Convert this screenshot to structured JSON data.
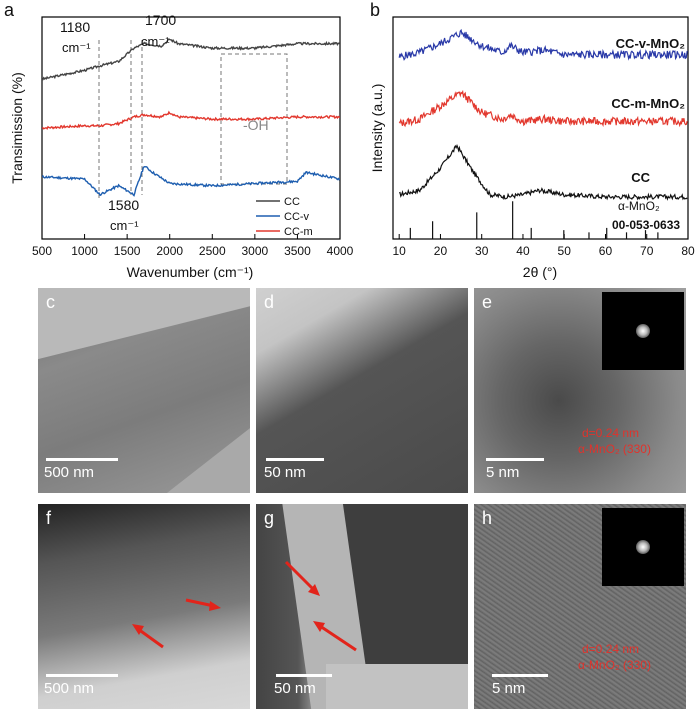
{
  "panel_a": {
    "label": "a",
    "ylabel": "Transimission (%)",
    "xlabel": "Wavenumber (cm⁻¹)",
    "xticks": [
      "500",
      "1000",
      "1500",
      "2000",
      "2500",
      "3000",
      "3500",
      "4000"
    ],
    "ann_1180": "1180",
    "ann_1700": "1700",
    "ann_1580": "1580",
    "ann_unit": "cm⁻¹",
    "ann_oh": "-OH",
    "legend": [
      {
        "name": "CC",
        "color": "#444444"
      },
      {
        "name": "CC-v",
        "color": "#1f5fb0"
      },
      {
        "name": "CC-m",
        "color": "#e2382e"
      }
    ]
  },
  "panel_b": {
    "label": "b",
    "ylabel": "Intensity (a.u.)",
    "xlabel": "2θ (°)",
    "xticks": [
      "10",
      "20",
      "30",
      "40",
      "50",
      "60",
      "70",
      "80"
    ],
    "series_labels": [
      "CC-v-MnO₂",
      "CC-m-MnO₂",
      "CC"
    ],
    "ref_name": "α-MnO₂",
    "ref_card": "00-053-0633"
  },
  "chart_data": [
    {
      "type": "line",
      "xlabel": "Wavenumber (cm⁻¹)",
      "ylabel": "Transimission (%)",
      "xlim": [
        500,
        4000
      ],
      "series": [
        {
          "name": "CC",
          "x": [
            500,
            1000,
            1180,
            1400,
            1580,
            1700,
            1900,
            2000,
            2100,
            2500,
            3000,
            3500,
            4000
          ],
          "y": [
            0.72,
            0.76,
            0.78,
            0.8,
            0.86,
            0.88,
            0.87,
            0.9,
            0.88,
            0.86,
            0.86,
            0.88,
            0.88
          ]
        },
        {
          "name": "CC-m",
          "x": [
            500,
            1000,
            1180,
            1400,
            1580,
            1700,
            1900,
            2000,
            2100,
            2500,
            3000,
            3500,
            4000
          ],
          "y": [
            0.5,
            0.51,
            0.51,
            0.52,
            0.55,
            0.56,
            0.55,
            0.57,
            0.55,
            0.54,
            0.54,
            0.55,
            0.55
          ]
        },
        {
          "name": "CC-v",
          "x": [
            500,
            1000,
            1180,
            1400,
            1580,
            1700,
            1800,
            2000,
            2500,
            3000,
            3500,
            3600,
            4000
          ],
          "y": [
            0.28,
            0.27,
            0.2,
            0.24,
            0.2,
            0.33,
            0.3,
            0.25,
            0.24,
            0.25,
            0.26,
            0.3,
            0.27
          ]
        }
      ]
    },
    {
      "type": "line",
      "xlabel": "2θ (°)",
      "ylabel": "Intensity (a.u.)",
      "xlim": [
        10,
        80
      ],
      "series": [
        {
          "name": "CC-v-MnO₂",
          "x": [
            10,
            15,
            20,
            25,
            30,
            35,
            37,
            40,
            45,
            50,
            60,
            70,
            80
          ],
          "y": [
            0.82,
            0.84,
            0.88,
            0.93,
            0.87,
            0.84,
            0.87,
            0.84,
            0.85,
            0.83,
            0.83,
            0.83,
            0.83
          ]
        },
        {
          "name": "CC-m-MnO₂",
          "x": [
            10,
            15,
            20,
            25,
            30,
            35,
            37,
            40,
            45,
            50,
            60,
            70,
            80
          ],
          "y": [
            0.52,
            0.54,
            0.6,
            0.66,
            0.57,
            0.54,
            0.56,
            0.53,
            0.54,
            0.53,
            0.53,
            0.53,
            0.53
          ]
        },
        {
          "name": "CC",
          "x": [
            10,
            15,
            20,
            24,
            28,
            32,
            36,
            40,
            44,
            50,
            60,
            70,
            80
          ],
          "y": [
            0.2,
            0.22,
            0.32,
            0.42,
            0.3,
            0.2,
            0.19,
            0.2,
            0.22,
            0.2,
            0.19,
            0.19,
            0.19
          ]
        }
      ],
      "reference_peaks": [
        12.7,
        18.1,
        28.8,
        37.5,
        42.0,
        49.9,
        56.0,
        60.3,
        65.1,
        69.7,
        72.7
      ]
    }
  ],
  "tem": {
    "c": {
      "label": "c",
      "scale": "500 nm"
    },
    "d": {
      "label": "d",
      "scale": "50 nm"
    },
    "e": {
      "label": "e",
      "scale": "5 nm",
      "d_text": "d=0.24 nm",
      "phase": "α-MnO₂ (330)"
    },
    "f": {
      "label": "f",
      "scale": "500 nm"
    },
    "g": {
      "label": "g",
      "scale": "50 nm"
    },
    "h": {
      "label": "h",
      "scale": "5 nm",
      "d_text": "d=0.24 nm",
      "phase": "α-MnO₂ (330)"
    }
  }
}
